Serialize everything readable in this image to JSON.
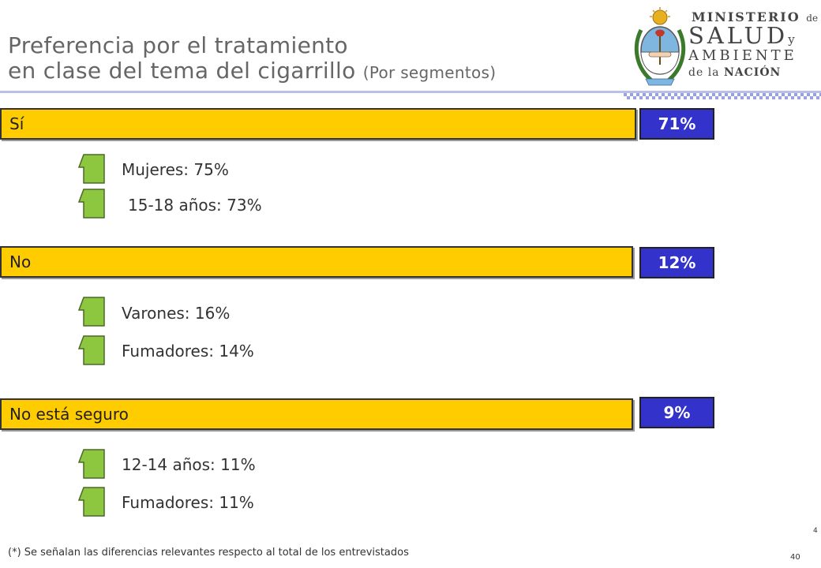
{
  "header": {
    "title_line1": "Preferencia por el tratamiento",
    "title_line2": "en clase del tema del cigarrillo",
    "title_sub": "(Por segmentos)"
  },
  "logo": {
    "line1": "MINISTERIO",
    "line1_de": "de",
    "line2": "SALUD",
    "line2_y": "y",
    "line3": "AMBIENTE",
    "line4_de": "de la",
    "line4": "NACIÓN"
  },
  "colors": {
    "bar_fill": "#ffcc00",
    "pct_fill": "#3333cc",
    "arrow_fill": "#8dc63f",
    "title_color": "#666666"
  },
  "chart_data": {
    "type": "bar",
    "categories": [
      "Sí",
      "No",
      "No está seguro"
    ],
    "values": [
      71,
      12,
      9
    ],
    "unit": "%"
  },
  "sections": [
    {
      "label": "Sí",
      "value": "71%",
      "segments": [
        {
          "icon": "up-arrow-icon",
          "text": "Mujeres: 75%"
        },
        {
          "icon": "up-arrow-icon",
          "text": "15-18 años: 73%"
        }
      ]
    },
    {
      "label": "No",
      "value": "12%",
      "segments": [
        {
          "icon": "up-arrow-icon",
          "text": "Varones: 16%"
        },
        {
          "icon": "up-arrow-icon",
          "text": "Fumadores: 14%"
        }
      ]
    },
    {
      "label": "No está seguro",
      "value": "9%",
      "segments": [
        {
          "icon": "up-arrow-icon",
          "text": "12-14 años: 11%"
        },
        {
          "icon": "up-arrow-icon",
          "text": "Fumadores: 11%"
        }
      ]
    }
  ],
  "footer": {
    "note": "(*) Se señalan las diferencias relevantes respecto al total de los entrevistados",
    "page_small": "4",
    "page_number": "40"
  }
}
